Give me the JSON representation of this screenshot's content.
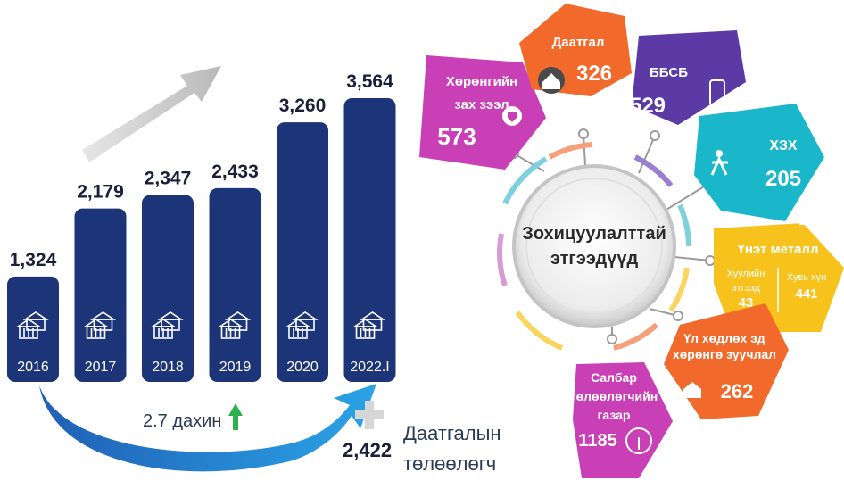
{
  "chart_data": {
    "type": "bar",
    "categories": [
      "2016",
      "2017",
      "2018",
      "2019",
      "2020",
      "2022.I"
    ],
    "values": [
      1324,
      2179,
      2347,
      2433,
      3260,
      3564
    ],
    "value_labels": [
      "1,324",
      "2,179",
      "2,347",
      "2,433",
      "3,260",
      "3,564"
    ],
    "bar_color": "#1c3578",
    "growth_label": "2.7 дахин",
    "insurance_value": "2,422",
    "insurance_label_1": "Даатгалын",
    "insurance_label_2": "төлөөлөгч"
  },
  "diagram": {
    "center_line1": "Зохицуулалттай",
    "center_line2": "этгээдүүд",
    "petals": [
      {
        "name_lines": [
          "Хөрөнгийн",
          "зах зээл"
        ],
        "value": "573",
        "color": "#c93fb5",
        "icon": "chart-shield-icon"
      },
      {
        "name_lines": [
          "Даатгал"
        ],
        "value": "326",
        "color": "#f1692b",
        "icon": "house-umbrella-icon"
      },
      {
        "name_lines": [
          "ББСБ"
        ],
        "value": "529",
        "color": "#5b3aa5",
        "icon": "phone-icon"
      },
      {
        "name_lines": [
          "ХЗХ"
        ],
        "value": "205",
        "color": "#19b7c9",
        "icon": "people-icon"
      },
      {
        "name_lines": [
          "Үнэт металл"
        ],
        "value": "",
        "color": "#f7c21b",
        "icon": "gold-bars-icon",
        "sub": [
          {
            "label_lines": [
              "Хуулийн",
              "этгээд"
            ],
            "value": "43"
          },
          {
            "label_lines": [
              "Хувь хүн"
            ],
            "value": "441"
          }
        ]
      },
      {
        "name_lines": [
          "Үл хөдлөх эд",
          "хөрөнгө зуучлал"
        ],
        "value": "262",
        "color": "#f1692b",
        "icon": "home-icon"
      },
      {
        "name_lines": [
          "Салбар",
          "төлөөлөгчийн",
          "газар"
        ],
        "value": "1185",
        "color": "#c93fb5",
        "icon": "tree-icon"
      }
    ]
  }
}
